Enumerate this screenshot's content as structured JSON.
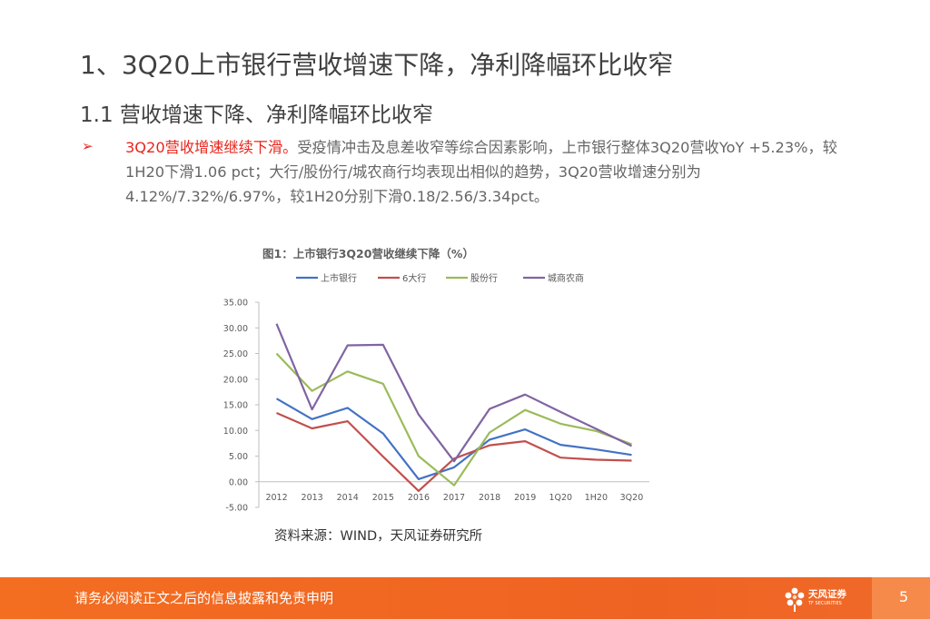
{
  "slide": {
    "title": "1、3Q20上市银行营收增速下降，净利降幅环比收窄",
    "subtitle": "1.1 营收增速下降、净利降幅环比收窄",
    "bullet": {
      "marker": "➢",
      "highlight": "3Q20营收增速继续下滑。",
      "body": "受疫情冲击及息差收窄等综合因素影响，上市银行整体3Q20营收YoY +5.23%，较1H20下滑1.06 pct；大行/股份行/城农商行均表现出相似的趋势，3Q20营收增速分别为4.12%/7.32%/6.97%，较1H20分别下滑0.18/2.56/3.34pct。"
    },
    "source": "资料来源：WIND，天风证券研究所"
  },
  "footer": {
    "disclaimer": "请务必阅读正文之后的信息披露和免责申明",
    "logo_text": "天风证券",
    "logo_sub": "TF SECURITIES",
    "page_number": "5"
  },
  "colors": {
    "accent_red": "#e8251c",
    "footer_orange": "#f36e21"
  },
  "chart_data": {
    "type": "line",
    "title": "图1：上市银行3Q20营收继续下降（%）",
    "xlabel": "",
    "ylabel": "",
    "categories": [
      "2012",
      "2013",
      "2014",
      "2015",
      "2016",
      "2017",
      "2018",
      "2019",
      "1Q20",
      "1H20",
      "3Q20"
    ],
    "ylim": [
      -5,
      35
    ],
    "yticks": [
      "-5.00",
      "0.00",
      "5.00",
      "10.00",
      "15.00",
      "20.00",
      "25.00",
      "30.00",
      "35.00"
    ],
    "legend_position": "top",
    "series": [
      {
        "name": "上市银行",
        "color": "#4472c4",
        "values": [
          16.2,
          12.2,
          14.4,
          9.4,
          0.5,
          2.8,
          8.2,
          10.2,
          7.2,
          6.29,
          5.23
        ]
      },
      {
        "name": "6大行",
        "color": "#c0504d",
        "values": [
          13.4,
          10.4,
          11.8,
          4.9,
          -1.8,
          4.5,
          7.1,
          7.9,
          4.7,
          4.3,
          4.12
        ]
      },
      {
        "name": "股份行",
        "color": "#9bbb59",
        "values": [
          25.0,
          17.7,
          21.5,
          19.1,
          5.0,
          -0.7,
          9.6,
          14.0,
          11.3,
          9.88,
          7.32
        ]
      },
      {
        "name": "城商农商",
        "color": "#8064a2",
        "values": [
          30.8,
          14.1,
          26.6,
          26.7,
          13.1,
          4.0,
          14.2,
          17.0,
          13.6,
          10.31,
          6.97
        ]
      }
    ]
  }
}
